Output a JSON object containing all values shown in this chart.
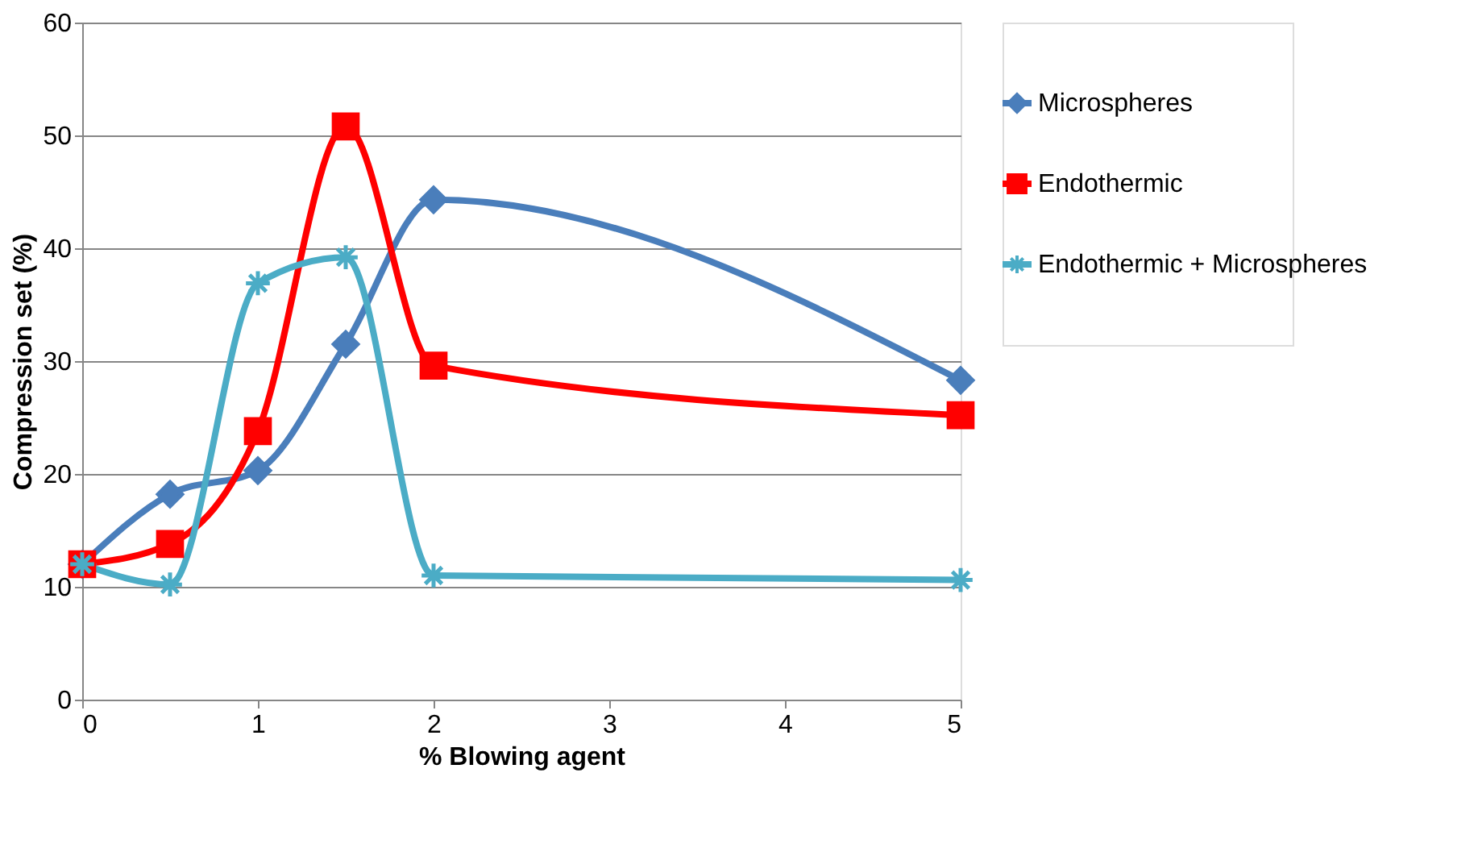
{
  "chart_data": {
    "type": "line",
    "xlabel": "% Blowing agent",
    "ylabel": "Compression set (%)",
    "x": [
      0,
      0.5,
      1,
      1.5,
      2,
      5
    ],
    "series": [
      {
        "name": "Microspheres",
        "color": "#4a7ebb",
        "marker": "diamond",
        "values": [
          12,
          18.2,
          20.3,
          31.5,
          44.3,
          28.3
        ]
      },
      {
        "name": "Endothermic",
        "color": "#ff0000",
        "marker": "square",
        "values": [
          12,
          13.8,
          23.8,
          50.8,
          29.6,
          25.2
        ]
      },
      {
        "name": "Endothermic + Microspheres",
        "color": "#4bacc6",
        "marker": "cross",
        "values": [
          12,
          10.2,
          36.9,
          39.2,
          11,
          10.6
        ]
      }
    ],
    "xlim": [
      0,
      5
    ],
    "xticks": [
      0,
      1,
      2,
      3,
      4,
      5
    ],
    "ylim": [
      0,
      60
    ],
    "yticks": [
      0,
      10,
      20,
      30,
      40,
      50,
      60
    ],
    "grid": "y",
    "legend": "right",
    "line_style": "solid"
  }
}
